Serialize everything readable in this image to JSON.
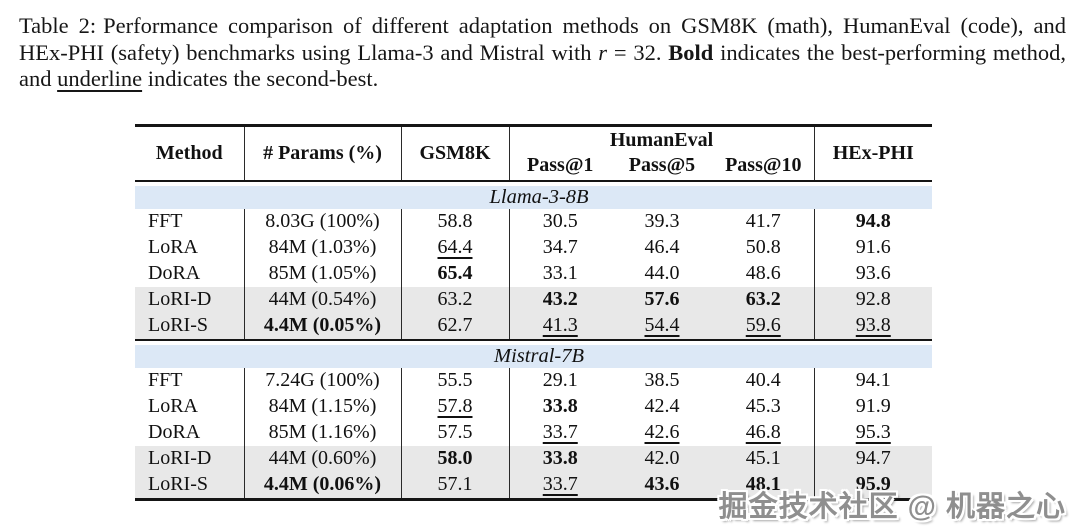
{
  "caption": {
    "label": "Table 2:",
    "text_a": "Performance comparison of different adaptation methods on GSM8K (math), HumanEval (code), and HEx-PHI (safety) benchmarks using Llama-3 and Mistral with",
    "math_r": "r",
    "text_b": "= 32.",
    "bold_word": "Bold",
    "text_c": "indicates the best-performing method, and",
    "underline_word": "underline",
    "text_d": "indicates the second-best."
  },
  "table": {
    "headers": {
      "method": "Method",
      "params": "# Params (%)",
      "gsm8k": "GSM8K",
      "humaneval": "HumanEval",
      "pass1": "Pass@1",
      "pass5": "Pass@5",
      "pass10": "Pass@10",
      "hexphi": "HEx-PHI"
    },
    "style_legend": {
      "b": "bold = best",
      "u": "underline = second-best",
      "": "plain"
    },
    "sections": [
      {
        "name": "Llama-3-8B",
        "rows": [
          {
            "method": "FFT",
            "shaded": false,
            "cells": [
              {
                "v": "8.03G (100%)",
                "s": ""
              },
              {
                "v": "58.8",
                "s": ""
              },
              {
                "v": "30.5",
                "s": ""
              },
              {
                "v": "39.3",
                "s": ""
              },
              {
                "v": "41.7",
                "s": ""
              },
              {
                "v": "94.8",
                "s": "b"
              }
            ]
          },
          {
            "method": "LoRA",
            "shaded": false,
            "cells": [
              {
                "v": "84M (1.03%)",
                "s": ""
              },
              {
                "v": "64.4",
                "s": "u"
              },
              {
                "v": "34.7",
                "s": ""
              },
              {
                "v": "46.4",
                "s": ""
              },
              {
                "v": "50.8",
                "s": ""
              },
              {
                "v": "91.6",
                "s": ""
              }
            ]
          },
          {
            "method": "DoRA",
            "shaded": false,
            "cells": [
              {
                "v": "85M (1.05%)",
                "s": ""
              },
              {
                "v": "65.4",
                "s": "b"
              },
              {
                "v": "33.1",
                "s": ""
              },
              {
                "v": "44.0",
                "s": ""
              },
              {
                "v": "48.6",
                "s": ""
              },
              {
                "v": "93.6",
                "s": ""
              }
            ]
          },
          {
            "method": "LoRI-D",
            "shaded": true,
            "cells": [
              {
                "v": "44M (0.54%)",
                "s": ""
              },
              {
                "v": "63.2",
                "s": ""
              },
              {
                "v": "43.2",
                "s": "b"
              },
              {
                "v": "57.6",
                "s": "b"
              },
              {
                "v": "63.2",
                "s": "b"
              },
              {
                "v": "92.8",
                "s": ""
              }
            ]
          },
          {
            "method": "LoRI-S",
            "shaded": true,
            "cells": [
              {
                "v": "4.4M (0.05%)",
                "s": "b"
              },
              {
                "v": "62.7",
                "s": ""
              },
              {
                "v": "41.3",
                "s": "u"
              },
              {
                "v": "54.4",
                "s": "u"
              },
              {
                "v": "59.6",
                "s": "u"
              },
              {
                "v": "93.8",
                "s": "u"
              }
            ]
          }
        ]
      },
      {
        "name": "Mistral-7B",
        "rows": [
          {
            "method": "FFT",
            "shaded": false,
            "cells": [
              {
                "v": "7.24G (100%)",
                "s": ""
              },
              {
                "v": "55.5",
                "s": ""
              },
              {
                "v": "29.1",
                "s": ""
              },
              {
                "v": "38.5",
                "s": ""
              },
              {
                "v": "40.4",
                "s": ""
              },
              {
                "v": "94.1",
                "s": ""
              }
            ]
          },
          {
            "method": "LoRA",
            "shaded": false,
            "cells": [
              {
                "v": "84M (1.15%)",
                "s": ""
              },
              {
                "v": "57.8",
                "s": "u"
              },
              {
                "v": "33.8",
                "s": "b"
              },
              {
                "v": "42.4",
                "s": ""
              },
              {
                "v": "45.3",
                "s": ""
              },
              {
                "v": "91.9",
                "s": ""
              }
            ]
          },
          {
            "method": "DoRA",
            "shaded": false,
            "cells": [
              {
                "v": "85M (1.16%)",
                "s": ""
              },
              {
                "v": "57.5",
                "s": ""
              },
              {
                "v": "33.7",
                "s": "u"
              },
              {
                "v": "42.6",
                "s": "u"
              },
              {
                "v": "46.8",
                "s": "u"
              },
              {
                "v": "95.3",
                "s": "u"
              }
            ]
          },
          {
            "method": "LoRI-D",
            "shaded": true,
            "cells": [
              {
                "v": "44M (0.60%)",
                "s": ""
              },
              {
                "v": "58.0",
                "s": "b"
              },
              {
                "v": "33.8",
                "s": "b"
              },
              {
                "v": "42.0",
                "s": ""
              },
              {
                "v": "45.1",
                "s": ""
              },
              {
                "v": "94.7",
                "s": ""
              }
            ]
          },
          {
            "method": "LoRI-S",
            "shaded": true,
            "cells": [
              {
                "v": "4.4M (0.06%)",
                "s": "b"
              },
              {
                "v": "57.1",
                "s": ""
              },
              {
                "v": "33.7",
                "s": "u"
              },
              {
                "v": "43.6",
                "s": "b"
              },
              {
                "v": "48.1",
                "s": "b"
              },
              {
                "v": "95.9",
                "s": "b"
              }
            ]
          }
        ]
      }
    ],
    "colors": {
      "section_band": "#dce8f6",
      "shaded_row": "#e8e8e8",
      "rule": "#151515",
      "text": "#111111"
    }
  },
  "watermark": "掘金技术社区 @ 机器之心"
}
